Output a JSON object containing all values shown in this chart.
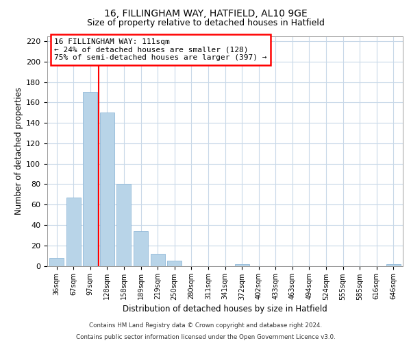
{
  "title": "16, FILLINGHAM WAY, HATFIELD, AL10 9GE",
  "subtitle": "Size of property relative to detached houses in Hatfield",
  "xlabel": "Distribution of detached houses by size in Hatfield",
  "ylabel": "Number of detached properties",
  "categories": [
    "36sqm",
    "67sqm",
    "97sqm",
    "128sqm",
    "158sqm",
    "189sqm",
    "219sqm",
    "250sqm",
    "280sqm",
    "311sqm",
    "341sqm",
    "372sqm",
    "402sqm",
    "433sqm",
    "463sqm",
    "494sqm",
    "524sqm",
    "555sqm",
    "585sqm",
    "616sqm",
    "646sqm"
  ],
  "values": [
    8,
    67,
    170,
    150,
    80,
    34,
    12,
    5,
    0,
    0,
    0,
    2,
    0,
    0,
    0,
    0,
    0,
    0,
    0,
    0,
    2
  ],
  "bar_color": "#b8d4e8",
  "bar_edge_color": "#90b8d8",
  "vline_color": "red",
  "annotation_line1": "16 FILLINGHAM WAY: 111sqm",
  "annotation_line2": "← 24% of detached houses are smaller (128)",
  "annotation_line3": "75% of semi-detached houses are larger (397) →",
  "ylim": [
    0,
    225
  ],
  "yticks": [
    0,
    20,
    40,
    60,
    80,
    100,
    120,
    140,
    160,
    180,
    200,
    220
  ],
  "footer_line1": "Contains HM Land Registry data © Crown copyright and database right 2024.",
  "footer_line2": "Contains public sector information licensed under the Open Government Licence v3.0.",
  "bg_color": "#ffffff",
  "grid_color": "#c8d8e8",
  "title_fontsize": 10,
  "subtitle_fontsize": 9
}
